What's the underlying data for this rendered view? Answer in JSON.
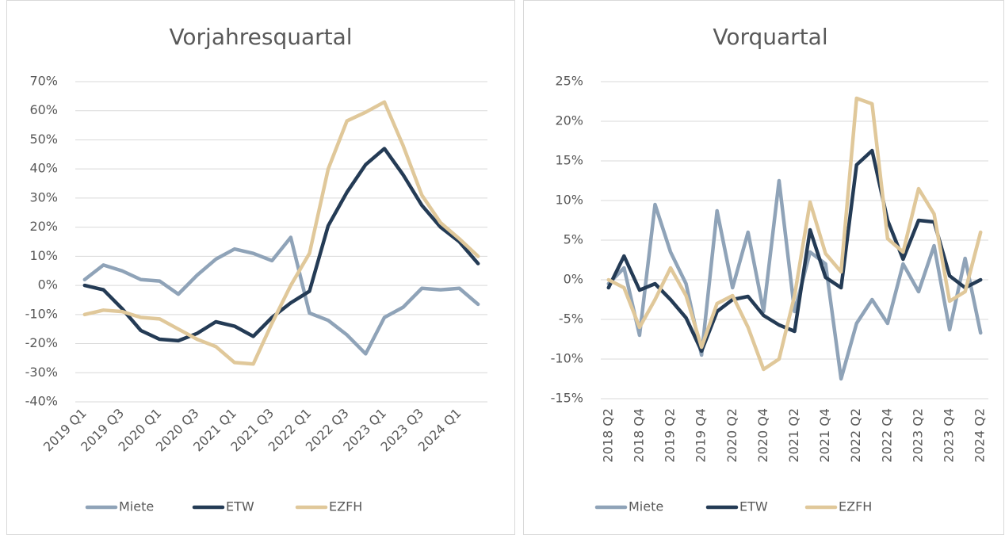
{
  "chart_data": [
    {
      "type": "line",
      "title": "Vorjahresquartal",
      "categories": [
        "2019 Q1",
        null,
        "2019 Q3",
        null,
        "2020 Q1",
        null,
        "2020 Q3",
        null,
        "2021 Q1",
        null,
        "2021 Q3",
        null,
        "2022 Q1",
        null,
        "2022 Q3",
        null,
        "2023 Q1",
        null,
        "2023 Q3",
        null,
        "2024 Q1",
        null
      ],
      "series": [
        {
          "name": "Miete",
          "color": "#8fa3b8",
          "values": [
            2,
            7,
            5,
            2,
            1.5,
            -3,
            3.5,
            9,
            12.5,
            11,
            8.5,
            16.5,
            -9.5,
            -12,
            -17,
            -23.5,
            -11,
            -7.5,
            -1,
            -1.5,
            -1,
            -6.5
          ]
        },
        {
          "name": "ETW",
          "color": "#243b55",
          "values": [
            0,
            -1.5,
            -8,
            -15.5,
            -18.5,
            -19,
            -16.5,
            -12.5,
            -14,
            -17.5,
            -11,
            -6,
            -2,
            20.5,
            32,
            41.5,
            47,
            38,
            27.5,
            20,
            15,
            7.5
          ]
        },
        {
          "name": "EZFH",
          "color": "#e0c89a",
          "values": [
            -10,
            -8.5,
            -9,
            -11,
            -11.5,
            -15,
            -18.5,
            -21,
            -26.5,
            -27,
            -13,
            0,
            11,
            40,
            56.5,
            59.5,
            63,
            48,
            31,
            21.5,
            16,
            10
          ]
        }
      ],
      "ylim": [
        -40,
        70
      ],
      "yticks": [
        {
          "value": -40,
          "label": "-40%"
        },
        {
          "value": -30,
          "label": "-30%"
        },
        {
          "value": -20,
          "label": "-20%"
        },
        {
          "value": -10,
          "label": "-10%"
        },
        {
          "value": 0,
          "label": "0%"
        },
        {
          "value": 10,
          "label": "10%"
        },
        {
          "value": 20,
          "label": "20%"
        },
        {
          "value": 30,
          "label": "30%"
        },
        {
          "value": 40,
          "label": "40%"
        },
        {
          "value": 50,
          "label": "50%"
        },
        {
          "value": 60,
          "label": "60%"
        },
        {
          "value": 70,
          "label": "70%"
        }
      ],
      "grid": true
    },
    {
      "type": "line",
      "title": "Vorquartal",
      "categories": [
        "2018 Q2",
        null,
        "2018 Q4",
        null,
        "2019 Q2",
        null,
        "2019 Q4",
        null,
        "2020 Q2",
        null,
        "2020 Q4",
        null,
        "2021 Q2",
        null,
        "2021 Q4",
        null,
        "2022 Q2",
        null,
        "2022 Q4",
        null,
        "2023 Q2",
        null,
        "2023 Q4",
        null,
        "2024 Q2"
      ],
      "series": [
        {
          "name": "Miete",
          "color": "#8fa3b8",
          "values": [
            -0.5,
            1.5,
            -7,
            9.5,
            3.5,
            -0.5,
            -9.5,
            8.7,
            -1,
            6,
            -4,
            12.5,
            -4,
            3.5,
            2,
            -12.5,
            -5.5,
            -2.5,
            -5.5,
            2,
            -1.5,
            4.3,
            -6.3,
            2.7,
            -6.7
          ]
        },
        {
          "name": "ETW",
          "color": "#243b55",
          "values": [
            -1,
            3,
            -1.3,
            -0.5,
            -2.5,
            -4.8,
            -9,
            -4,
            -2.5,
            -2.1,
            -4.5,
            -5.7,
            -6.5,
            6.3,
            0.3,
            -1,
            14.5,
            16.3,
            7.5,
            2.6,
            7.5,
            7.3,
            0.5,
            -1,
            0
          ]
        },
        {
          "name": "EZFH",
          "color": "#e0c89a",
          "values": [
            0,
            -1,
            -6,
            -2.5,
            1.5,
            -2,
            -8.5,
            -3,
            -2,
            -6,
            -11.3,
            -10,
            -2,
            9.8,
            3.3,
            1,
            22.9,
            22.2,
            5.2,
            3.5,
            11.5,
            8.3,
            -2.7,
            -1.5,
            6
          ]
        }
      ],
      "ylim": [
        -15,
        25
      ],
      "yticks": [
        {
          "value": -15,
          "label": "-15%"
        },
        {
          "value": -10,
          "label": "-10%"
        },
        {
          "value": -5,
          "label": "-5%"
        },
        {
          "value": 0,
          "label": "0%"
        },
        {
          "value": 5,
          "label": "5%"
        },
        {
          "value": 10,
          "label": "10%"
        },
        {
          "value": 15,
          "label": "15%"
        },
        {
          "value": 20,
          "label": "20%"
        },
        {
          "value": 25,
          "label": "25%"
        }
      ],
      "grid": true
    }
  ]
}
